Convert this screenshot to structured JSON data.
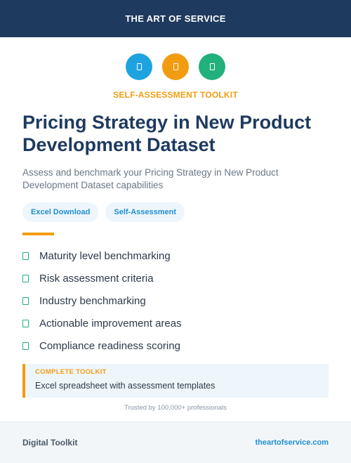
{
  "header": {
    "brand": "THE ART OF SERVICE",
    "bg_color": "#1e3a5f"
  },
  "icons": [
    {
      "name": "document-icon",
      "color": "#1fa3e0"
    },
    {
      "name": "document-icon",
      "color": "#f29c11"
    },
    {
      "name": "document-icon",
      "color": "#22b07d"
    }
  ],
  "eyebrow": "SELF-ASSESSMENT TOOLKIT",
  "title": "Pricing Strategy in New Product Development Dataset",
  "subtitle": "Assess and benchmark your Pricing Strategy in New Product Development Dataset capabilities",
  "tags": [
    "Excel Download",
    "Self-Assessment"
  ],
  "features": [
    "Maturity level benchmarking",
    "Risk assessment criteria",
    "Industry benchmarking",
    "Actionable improvement areas",
    "Compliance readiness scoring"
  ],
  "callout": {
    "label": "COMPLETE TOOLKIT",
    "text": "Excel spreadsheet with assessment templates"
  },
  "trusted": "Trusted by 100,000+ professionals",
  "footer": {
    "left": "Digital Toolkit",
    "right": "theartofservice.com"
  }
}
